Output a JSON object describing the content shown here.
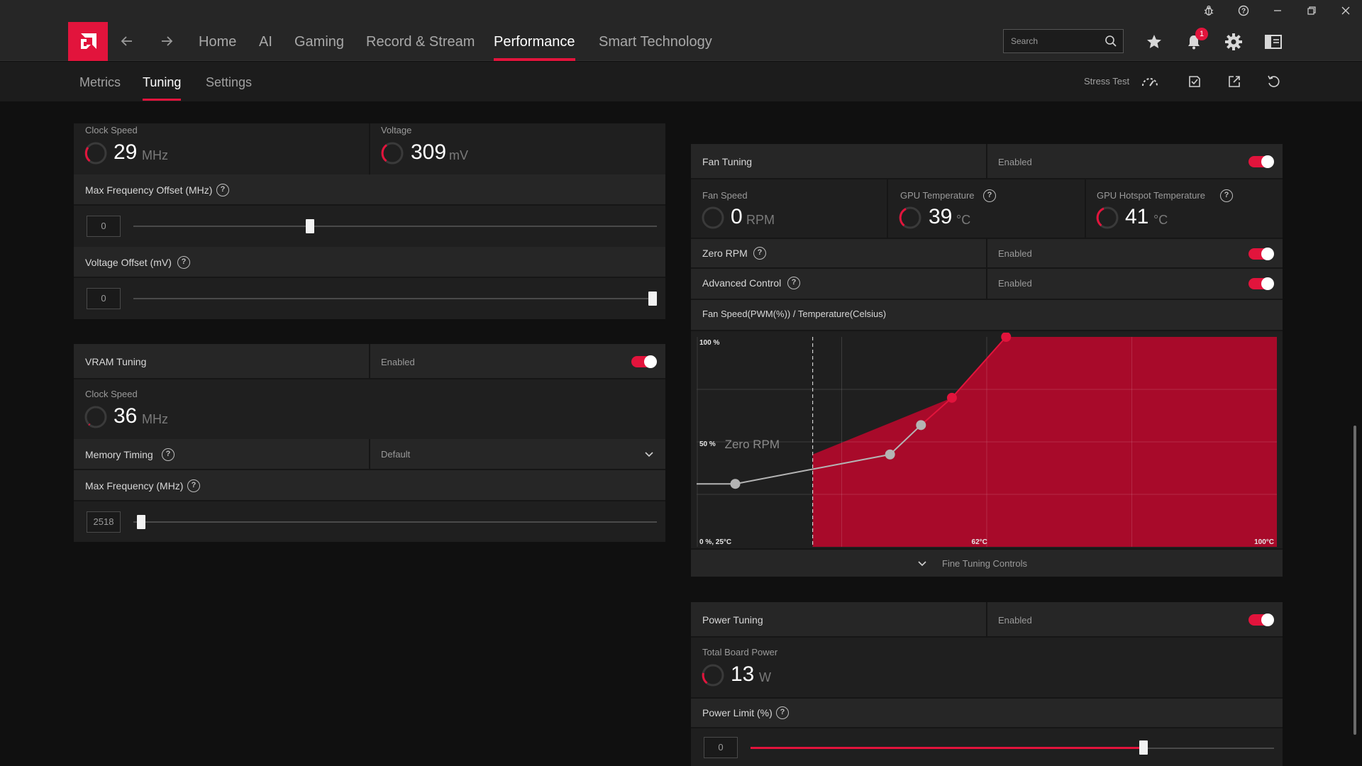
{
  "window": {
    "controls": [
      "bug-icon",
      "help-icon",
      "minimize-icon",
      "restore-icon",
      "close-icon"
    ]
  },
  "nav": {
    "items": [
      "Home",
      "AI",
      "Gaming",
      "Record & Stream",
      "Performance",
      "Smart Technology"
    ],
    "active": "Performance",
    "search_placeholder": "Search",
    "notification_count": "1"
  },
  "subnav": {
    "tabs": [
      "Metrics",
      "Tuning",
      "Settings"
    ],
    "active": "Tuning",
    "stress_test_label": "Stress Test"
  },
  "gpu_tuning": {
    "clock_speed_label": "Clock Speed",
    "clock_speed_value": "29",
    "clock_speed_unit": "MHz",
    "voltage_label": "Voltage",
    "voltage_value": "309",
    "voltage_unit": "mV",
    "max_freq_offset_label": "Max Frequency Offset (MHz)",
    "max_freq_offset_value": "0",
    "voltage_offset_label": "Voltage Offset (mV)",
    "voltage_offset_value": "0"
  },
  "vram_tuning": {
    "title": "VRAM Tuning",
    "status": "Enabled",
    "clock_speed_label": "Clock Speed",
    "clock_speed_value": "36",
    "clock_speed_unit": "MHz",
    "memory_timing_label": "Memory Timing",
    "memory_timing_value": "Default",
    "max_freq_label": "Max Frequency (MHz)",
    "max_freq_value": "2518"
  },
  "fan_tuning": {
    "title": "Fan Tuning",
    "status": "Enabled",
    "fan_speed_label": "Fan Speed",
    "fan_speed_value": "0",
    "fan_speed_unit": "RPM",
    "gpu_temp_label": "GPU Temperature",
    "gpu_temp_value": "39",
    "gpu_temp_unit": "°C",
    "hotspot_label": "GPU Hotspot Temperature",
    "hotspot_value": "41",
    "hotspot_unit": "°C",
    "zero_rpm_label": "Zero RPM",
    "zero_rpm_status": "Enabled",
    "advanced_label": "Advanced Control",
    "advanced_status": "Enabled",
    "chart_title": "Fan Speed(PWM(%)) / Temperature(Celsius)",
    "fine_tuning_label": "Fine Tuning Controls"
  },
  "power_tuning": {
    "title": "Power Tuning",
    "status": "Enabled",
    "tbp_label": "Total Board Power",
    "tbp_value": "13",
    "tbp_unit": "W",
    "power_limit_label": "Power Limit (%)",
    "power_limit_value": "0"
  },
  "sliders": {
    "max_freq_offset_fraction": 0.335,
    "voltage_offset_fraction": 1.0,
    "vram_max_freq_fraction": 0.007,
    "power_limit_fraction": 0.755
  },
  "chart_data": {
    "type": "area",
    "y_top_label": "100 %",
    "y_mid_label": "50 %",
    "origin_label": "0 %, 25°C",
    "x_mid_label": "62°C",
    "x_max_label": "100°C",
    "zero_rpm_label": "Zero RPM",
    "zero_rpm_threshold_c": 40,
    "xlim": [
      25,
      100
    ],
    "ylim": [
      0,
      100
    ],
    "points": [
      {
        "x": 30,
        "y": 30,
        "color": "#b4b4b4"
      },
      {
        "x": 50,
        "y": 44,
        "color": "#b4b4b4"
      },
      {
        "x": 54,
        "y": 58,
        "color": "#b4b4b4"
      },
      {
        "x": 58,
        "y": 71,
        "color": "#e2143c"
      },
      {
        "x": 65,
        "y": 100,
        "color": "#e2143c"
      }
    ],
    "accent": "#e2143c",
    "fill": "#a80a2a"
  }
}
